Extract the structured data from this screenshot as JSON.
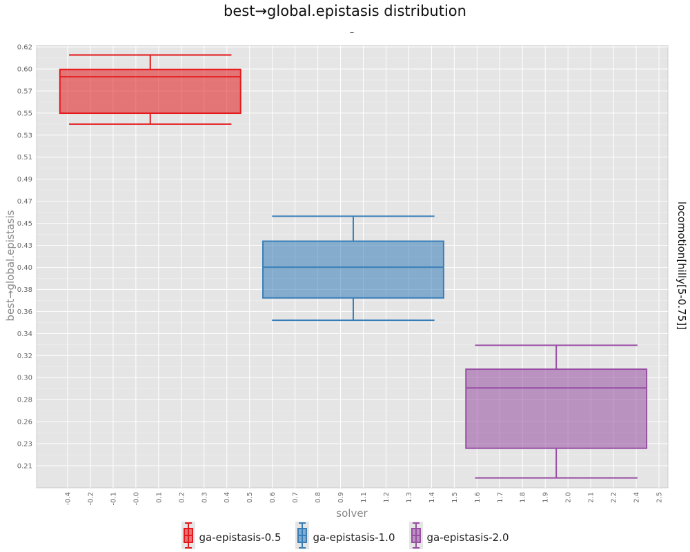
{
  "chart_data": {
    "type": "box",
    "title": "best→global.epistasis distribution",
    "subtitle": "–",
    "xlabel": "solver",
    "ylabel": "best→global.epistasis",
    "facet_label": "locomotion[hilly[5-0.75]]",
    "x_tick_labels": [
      "-0.4",
      "-0.2",
      "-0.1",
      "-0.0",
      "0.1",
      "0.2",
      "0.3",
      "0.4",
      "0.5",
      "0.6",
      "0.7",
      "0.8",
      "0.9",
      "1.1",
      "1.2",
      "1.3",
      "1.4",
      "1.5",
      "1.6",
      "1.7",
      "1.8",
      "1.9",
      "2.0",
      "2.1",
      "2.2",
      "2.4",
      "2.5"
    ],
    "y_tick_labels": [
      "0.21",
      "0.23",
      "0.26",
      "0.28",
      "0.30",
      "0.32",
      "0.34",
      "0.36",
      "0.38",
      "0.40",
      "0.43",
      "0.45",
      "0.47",
      "0.49",
      "0.51",
      "0.53",
      "0.55",
      "0.57",
      "0.60",
      "0.62"
    ],
    "xlim": [
      -0.56,
      2.55
    ],
    "ylim": [
      0.1955,
      0.6205
    ],
    "grid": true,
    "legend_position": "bottom",
    "series": [
      {
        "name": "ga-epistasis-0.5",
        "color": "#e41a1c",
        "center": 0.0,
        "whisker_low": 0.545,
        "q1": 0.5555,
        "median": 0.5905,
        "q3": 0.5975,
        "whisker_high": 0.6115
      },
      {
        "name": "ga-epistasis-1.0",
        "color": "#377eb8",
        "center": 1.0,
        "whisker_low": 0.3565,
        "q1": 0.378,
        "median": 0.4075,
        "q3": 0.4325,
        "whisker_high": 0.4565
      },
      {
        "name": "ga-epistasis-2.0",
        "color": "#984ea3",
        "center": 2.0,
        "whisker_low": 0.205,
        "q1": 0.2335,
        "median": 0.2915,
        "q3": 0.3095,
        "whisker_high": 0.3325
      }
    ]
  }
}
